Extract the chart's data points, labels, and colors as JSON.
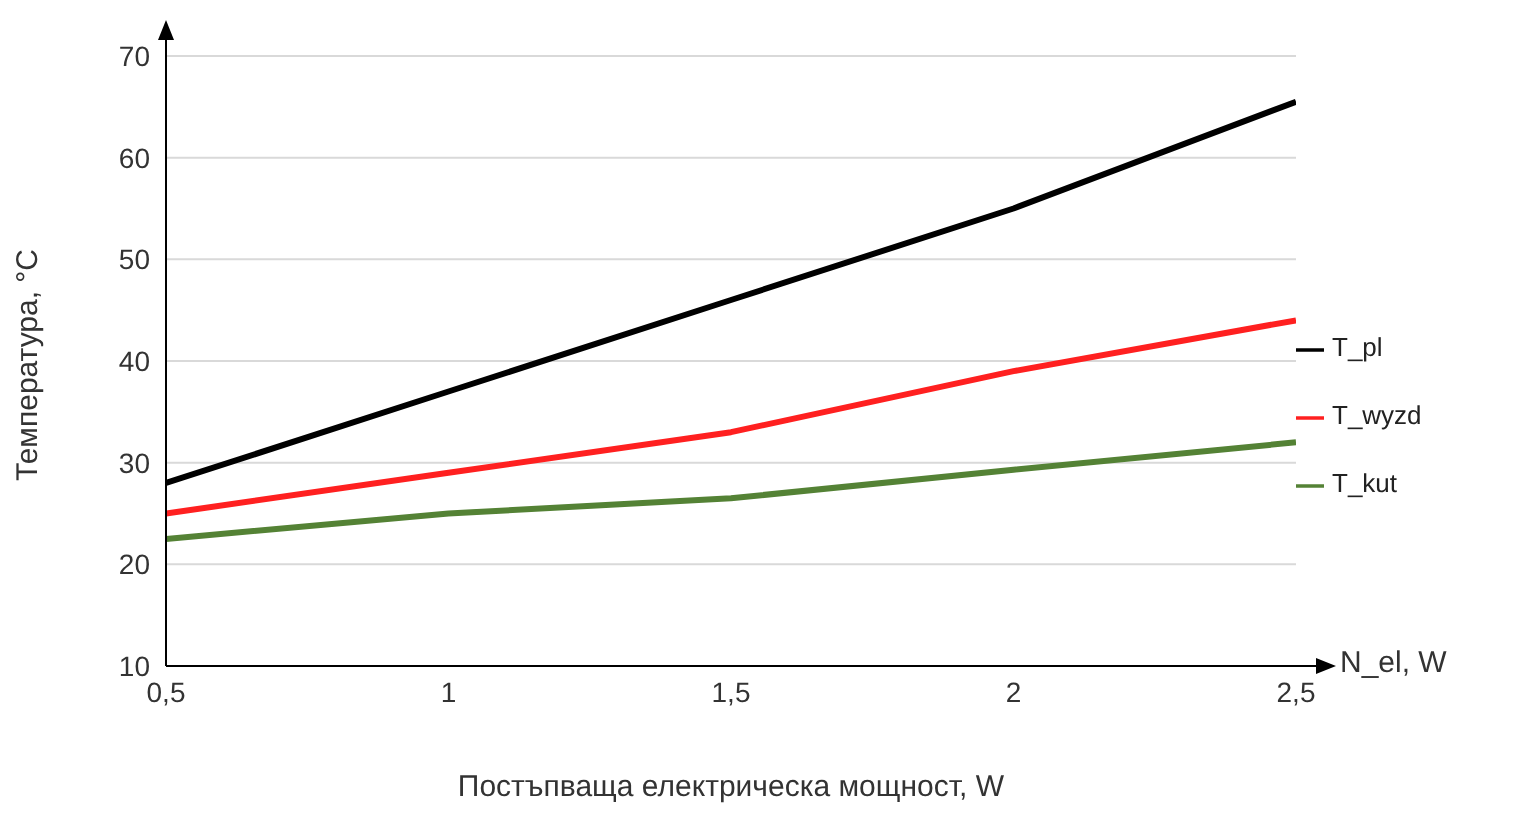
{
  "chart_data": {
    "type": "line",
    "xlabel": "Постъпваща електрическа мощност, W",
    "ylabel": "Температура, °C",
    "x": [
      0.5,
      1,
      1.5,
      2,
      2.5
    ],
    "series": [
      {
        "name": "T_pl",
        "color": "#000000",
        "values": [
          28,
          37,
          46,
          55,
          65.5
        ]
      },
      {
        "name": "T_wyzd",
        "color": "#ff2020",
        "values": [
          25,
          29,
          33,
          39,
          44
        ]
      },
      {
        "name": "T_kut",
        "color": "#548235",
        "values": [
          22.5,
          25,
          26.5,
          29.3,
          32
        ]
      }
    ],
    "xlim": [
      0.5,
      2.5
    ],
    "xticks": [
      {
        "value": 0.5,
        "label": "0,5"
      },
      1,
      {
        "value": 1.5,
        "label": "1,5"
      },
      2,
      {
        "value": 2.5,
        "label": "2,5"
      }
    ],
    "ylim": [
      10,
      70
    ],
    "yticks": [
      10,
      20,
      30,
      40,
      50,
      60,
      70
    ],
    "grid": "y",
    "legend": "right",
    "marker": "none",
    "line_style": "solid",
    "annotations": [
      "N_el, W"
    ]
  }
}
